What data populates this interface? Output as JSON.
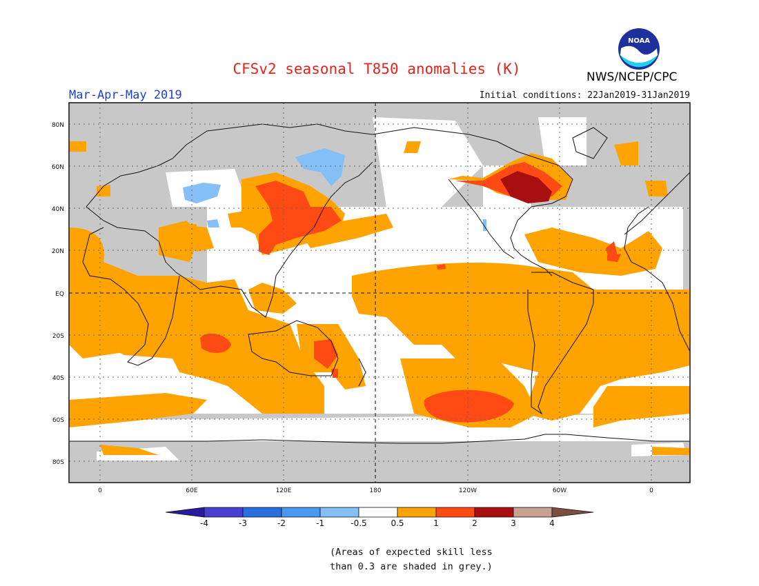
{
  "header": {
    "title": "CFSv2 seasonal T850 anomalies (K)",
    "season": "Mar-Apr-May 2019",
    "initial_conditions": "Initial conditions: 22Jan2019-31Jan2019",
    "organization": "NWS/NCEP/CPC",
    "logo_text": "NOAA",
    "logo_icon": "noaa-logo-icon"
  },
  "map": {
    "projection": "cylindrical equidistant",
    "lon_labels": [
      "0",
      "60E",
      "120E",
      "180",
      "120W",
      "60W",
      "0"
    ],
    "lat_labels": [
      "80N",
      "60N",
      "40N",
      "20N",
      "EQ",
      "20S",
      "40S",
      "60S",
      "80S"
    ],
    "grid": "dotted",
    "reference_lines": [
      "EQ",
      "180"
    ],
    "skill_mask_color": "#c8c8c8",
    "ocean_neutral_color": "#ffffff"
  },
  "colorbar": {
    "tick_labels": [
      "-4",
      "-3",
      "-2",
      "-1",
      "-0.5",
      "0.5",
      "1",
      "2",
      "3",
      "4"
    ],
    "colors": [
      "#2a1b9c",
      "#4a3fd1",
      "#2a6fe0",
      "#4d98ef",
      "#84c0f6",
      "#ffffff",
      "#ffa300",
      "#ff4a14",
      "#a8100f",
      "#c8a190",
      "#7a4f3e"
    ]
  },
  "footnote": {
    "line1": "(Areas of expected skill less",
    "line2": "than 0.3 are shaded in grey.)"
  }
}
